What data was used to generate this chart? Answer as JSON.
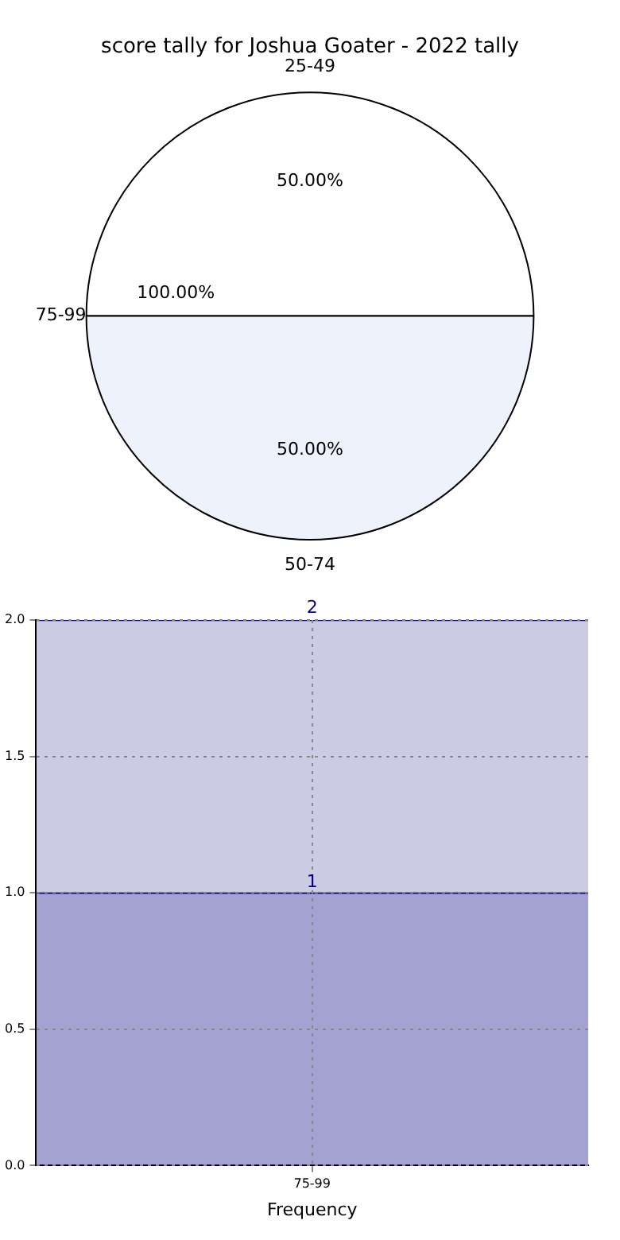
{
  "chart_data": [
    {
      "type": "pie",
      "title": "score tally for Joshua Goater - 2022 tally",
      "categories": [
        "25-49",
        "50-74",
        "75-99"
      ],
      "values": [
        50,
        50,
        0
      ],
      "colors": [
        "#ffffff",
        "#eef2fc",
        "#ffffff"
      ],
      "value_labels": [
        "50.00%",
        "50.00%",
        null
      ],
      "annotations": [
        "100.00%"
      ],
      "legend": false
    },
    {
      "type": "bar",
      "stacked": true,
      "categories": [
        "75-99"
      ],
      "xlabel": "Frequency",
      "ylim": [
        0,
        2
      ],
      "yticks": [
        {
          "value": 0,
          "label": "0.0"
        },
        {
          "value": 0.5,
          "label": "0.5"
        },
        {
          "value": 1,
          "label": "1.0"
        },
        {
          "value": 1.5,
          "label": "1.5"
        },
        {
          "value": 2,
          "label": "2.0"
        }
      ],
      "grid": true,
      "legend": false,
      "series": [
        {
          "color": "#a3a3d1",
          "values": [
            1
          ],
          "value_labels": [
            "1"
          ]
        },
        {
          "color": "#cbcbe3",
          "values": [
            1
          ]
        }
      ],
      "totals": [
        "2"
      ]
    }
  ]
}
